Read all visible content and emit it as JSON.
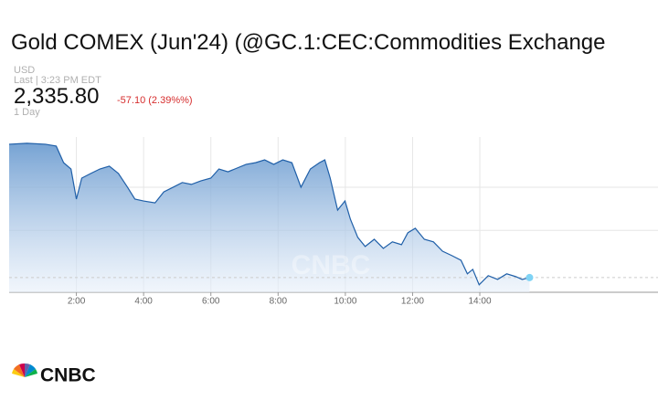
{
  "chart_data": {
    "type": "area",
    "title": "Gold COMEX (Jun'24) (@GC.1:CEC:Commodities Exchange",
    "currency": "USD",
    "last_updated": "Last | 3:23 PM EDT",
    "price": "2,335.80",
    "change": "-57.10 (2.39%%)",
    "period": "1 Day",
    "logo": "CNBC",
    "color": "#1f5fa8",
    "xlim": [
      0,
      19.3
    ],
    "xticks": [
      {
        "value": 2,
        "label": "2:00"
      },
      {
        "value": 4,
        "label": "4:00"
      },
      {
        "value": 6,
        "label": "6:00"
      },
      {
        "value": 8,
        "label": "8:00"
      },
      {
        "value": 10,
        "label": "10:00"
      },
      {
        "value": 12,
        "label": "12:00"
      },
      {
        "value": 14,
        "label": "14:00"
      }
    ],
    "ylim": [
      2329.5,
      2396
    ],
    "yticks": [
      2374.5,
      2356
    ],
    "grid": true,
    "x": [
      0,
      0.53,
      1.08,
      1.4,
      1.62,
      1.84,
      2.0,
      2.16,
      2.43,
      2.7,
      2.98,
      3.25,
      3.52,
      3.74,
      4.0,
      4.34,
      4.6,
      4.88,
      5.15,
      5.42,
      5.7,
      6.0,
      6.24,
      6.51,
      6.78,
      7.05,
      7.33,
      7.6,
      7.87,
      8.14,
      8.41,
      8.68,
      8.96,
      9.23,
      9.39,
      9.55,
      9.77,
      9.99,
      10.15,
      10.37,
      10.59,
      10.86,
      11.13,
      11.4,
      11.67,
      11.86,
      12.08,
      12.35,
      12.62,
      12.89,
      13.17,
      13.44,
      13.63,
      13.79,
      13.98,
      14.25,
      14.53,
      14.8,
      15.07,
      15.26,
      15.48
    ],
    "values": [
      2392.9,
      2393.3,
      2392.9,
      2392.1,
      2385.0,
      2382.3,
      2369.4,
      2378.4,
      2380.4,
      2382.3,
      2383.5,
      2380.4,
      2374.5,
      2369.4,
      2368.6,
      2367.8,
      2372.5,
      2374.5,
      2376.5,
      2375.7,
      2377.2,
      2378.4,
      2382.3,
      2381.1,
      2382.7,
      2384.3,
      2385.0,
      2386.2,
      2384.3,
      2386.2,
      2385.0,
      2374.5,
      2382.3,
      2385.0,
      2386.2,
      2378.4,
      2364.7,
      2368.6,
      2360.8,
      2353.0,
      2349.1,
      2352.2,
      2348.3,
      2351.1,
      2349.9,
      2355.0,
      2356.9,
      2352.2,
      2351.1,
      2347.1,
      2345.2,
      2343.2,
      2337.4,
      2339.3,
      2332.7,
      2336.6,
      2335.0,
      2337.4,
      2336.2,
      2335.0,
      2335.8
    ]
  }
}
